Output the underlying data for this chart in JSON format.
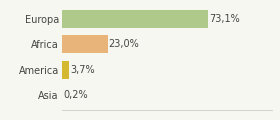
{
  "categories": [
    "Europa",
    "Africa",
    "America",
    "Asia"
  ],
  "values": [
    73.1,
    23.0,
    3.7,
    0.2
  ],
  "labels": [
    "73,1%",
    "23,0%",
    "3,7%",
    "0,2%"
  ],
  "bar_colors": [
    "#aec98a",
    "#e8b47a",
    "#d4b830",
    "#d4b830"
  ],
  "background_color": "#f7f7f2",
  "xlim": [
    0,
    105
  ],
  "label_fontsize": 7,
  "tick_fontsize": 7,
  "bar_height": 0.72
}
